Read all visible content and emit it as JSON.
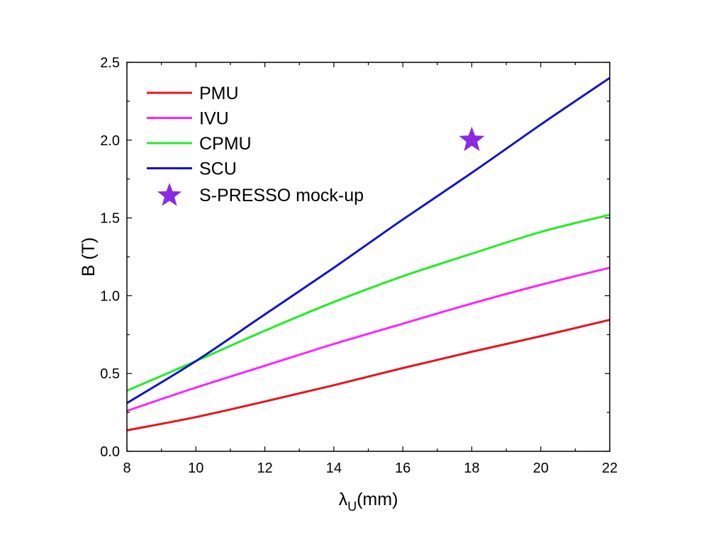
{
  "chart_data": {
    "type": "line",
    "xlabel": "λU(mm)",
    "xlabel_main": "λ",
    "xlabel_sub": "U",
    "xlabel_unit": "(mm)",
    "ylabel": "B (T)",
    "xlim": [
      8,
      22
    ],
    "ylim": [
      0,
      2.5
    ],
    "xticks": [
      8,
      10,
      12,
      14,
      16,
      18,
      20,
      22
    ],
    "yticks": [
      0.0,
      0.5,
      1.0,
      1.5,
      2.0,
      2.5
    ],
    "xtick_labels": [
      "8",
      "10",
      "12",
      "14",
      "16",
      "18",
      "20",
      "22"
    ],
    "ytick_labels": [
      "0.0",
      "0.5",
      "1.0",
      "1.5",
      "2.0",
      "2.5"
    ],
    "grid": false,
    "legend_position": "top-left",
    "x": [
      8,
      10,
      12,
      14,
      16,
      18,
      20,
      22
    ],
    "series": [
      {
        "name": "PMU",
        "color": "#e8141c",
        "values": [
          0.135,
          0.22,
          0.32,
          0.425,
          0.535,
          0.64,
          0.74,
          0.845
        ]
      },
      {
        "name": "IVU",
        "color": "#ff22ff",
        "values": [
          0.26,
          0.41,
          0.55,
          0.69,
          0.82,
          0.95,
          1.07,
          1.18
        ]
      },
      {
        "name": "CPMU",
        "color": "#22ee22",
        "values": [
          0.39,
          0.58,
          0.775,
          0.96,
          1.125,
          1.27,
          1.41,
          1.52
        ]
      },
      {
        "name": "SCU",
        "color": "#1414c8",
        "values": [
          0.31,
          0.58,
          0.88,
          1.18,
          1.49,
          1.79,
          2.1,
          2.4
        ]
      }
    ],
    "markers": [
      {
        "name": "S-PRESSO mock-up",
        "color": "#8a2be2",
        "shape": "star",
        "x": 18,
        "y": 2.0
      }
    ]
  }
}
